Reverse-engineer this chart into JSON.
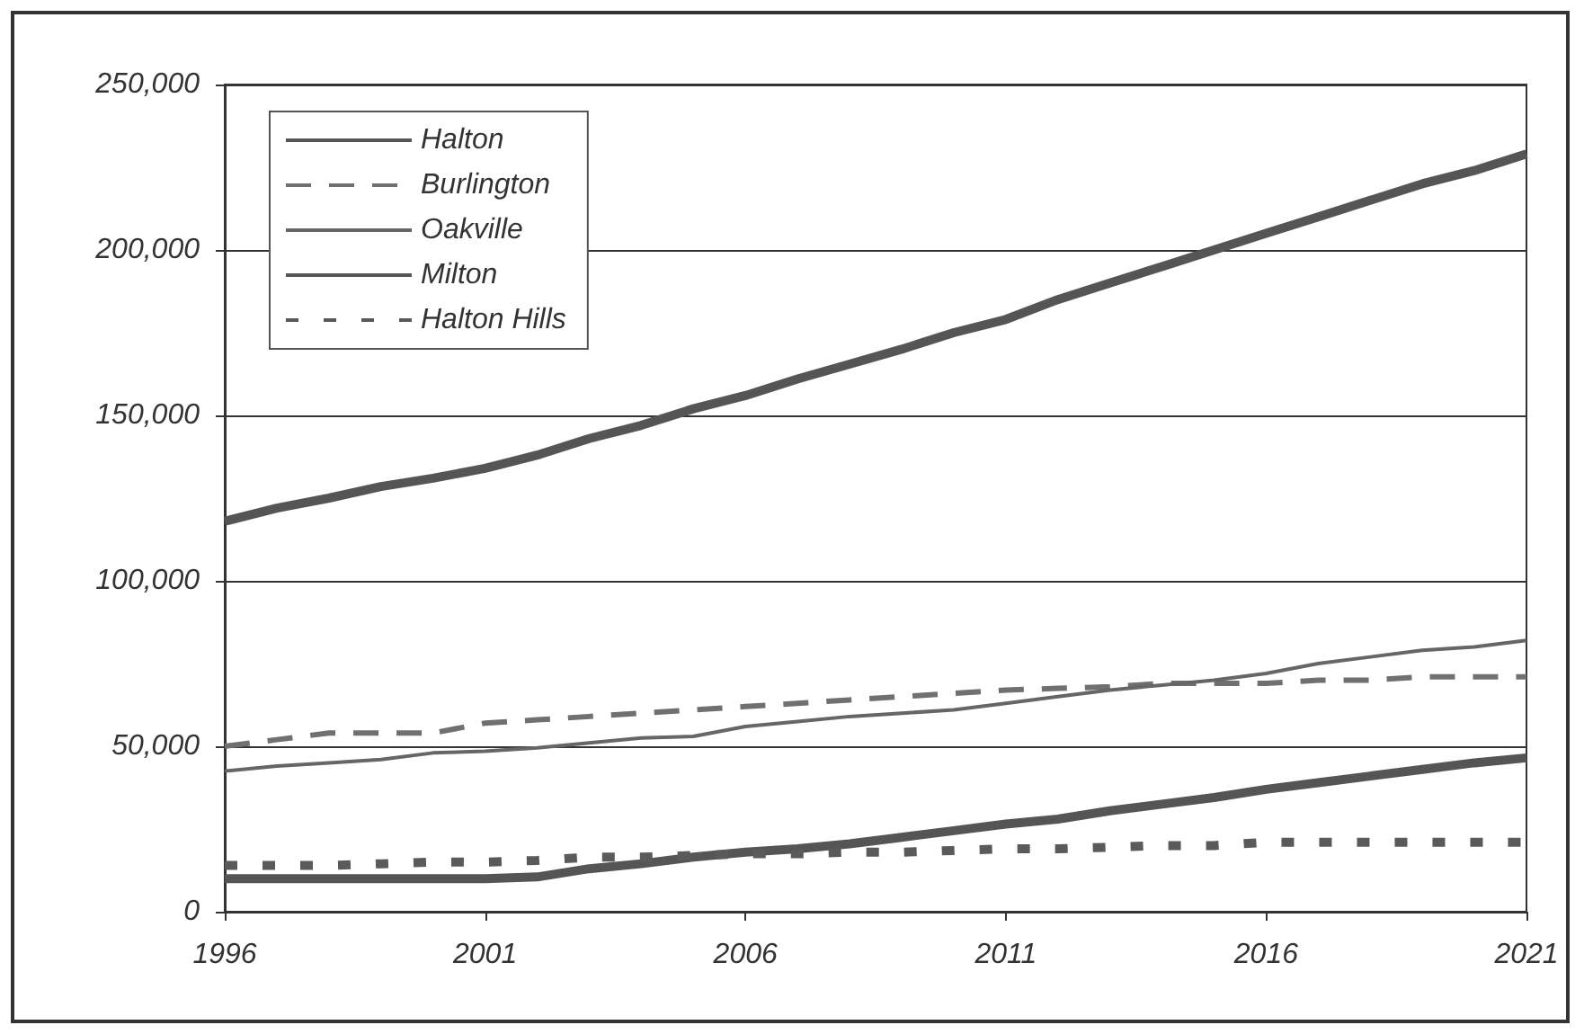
{
  "chart_data": {
    "type": "line",
    "x": [
      1996,
      1997,
      1998,
      1999,
      2000,
      2001,
      2002,
      2003,
      2004,
      2005,
      2006,
      2007,
      2008,
      2009,
      2010,
      2011,
      2012,
      2013,
      2014,
      2015,
      2016,
      2017,
      2018,
      2019,
      2020,
      2021
    ],
    "series": [
      {
        "name": "Halton",
        "color": "#555555",
        "line_style": "solid",
        "values": [
          118000,
          122000,
          125000,
          128500,
          131000,
          134000,
          138000,
          143000,
          147000,
          152000,
          156000,
          161000,
          165500,
          170000,
          175000,
          179000,
          185000,
          190000,
          195000,
          200000,
          205000,
          210000,
          215000,
          220000,
          224000,
          229000
        ]
      },
      {
        "name": "Burlington",
        "color": "#707070",
        "line_style": "dashed",
        "values": [
          50000,
          52000,
          54000,
          54000,
          54000,
          57000,
          58000,
          59000,
          60000,
          61000,
          62000,
          63000,
          64000,
          65000,
          66000,
          67000,
          67500,
          68000,
          69000,
          69000,
          69000,
          70000,
          70000,
          71000,
          71000,
          71000
        ]
      },
      {
        "name": "Oakville",
        "color": "#666666",
        "line_style": "solid",
        "values": [
          42500,
          44000,
          45000,
          46000,
          48000,
          48500,
          49500,
          51000,
          52500,
          53000,
          56000,
          57500,
          59000,
          60000,
          61000,
          63000,
          65000,
          67000,
          68500,
          70000,
          72000,
          75000,
          77000,
          79000,
          80000,
          82000
        ]
      },
      {
        "name": "Milton",
        "color": "#555555",
        "line_style": "solid",
        "values": [
          10000,
          10000,
          10000,
          10000,
          10000,
          10000,
          10500,
          13000,
          14500,
          16500,
          18000,
          19000,
          20500,
          22500,
          24500,
          26500,
          28000,
          30500,
          32500,
          34500,
          37000,
          39000,
          41000,
          43000,
          45000,
          46500
        ]
      },
      {
        "name": "Halton Hills",
        "color": "#5a5a5a",
        "line_style": "dotted",
        "values": [
          14000,
          14000,
          14000,
          14500,
          15000,
          15000,
          15500,
          16500,
          16500,
          17000,
          17500,
          17500,
          18000,
          18000,
          18500,
          19000,
          19000,
          19500,
          20000,
          20000,
          21000,
          21000,
          21000,
          21000,
          21000,
          21000
        ]
      }
    ],
    "xlim": [
      1996,
      2021
    ],
    "xticks": [
      1996,
      2001,
      2006,
      2011,
      2016,
      2021
    ],
    "ylim": [
      0,
      250000
    ],
    "yticks": [
      0,
      {
        "value": 50000,
        "label": "50,000"
      },
      {
        "value": 100000,
        "label": "100,000"
      },
      {
        "value": 150000,
        "label": "150,000"
      },
      {
        "value": 200000,
        "label": "200,000"
      },
      {
        "value": 250000,
        "label": "250,000"
      }
    ],
    "grid": "y",
    "legend": "top left",
    "marker": "none"
  }
}
